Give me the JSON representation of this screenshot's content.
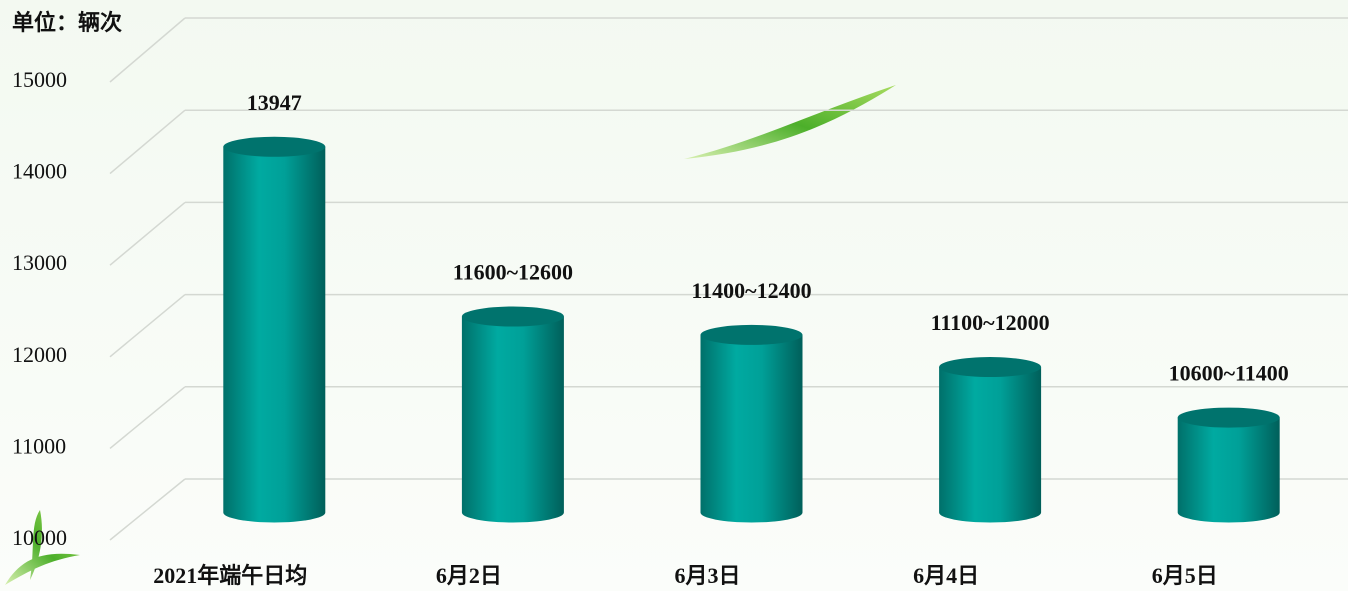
{
  "chart_data": {
    "type": "bar",
    "title": "单位：辆次",
    "categories": [
      "2021年端午日均",
      "6月2日",
      "6月3日",
      "6月4日",
      "6月5日"
    ],
    "values": [
      13947,
      12100,
      11900,
      11550,
      11000
    ],
    "value_labels": [
      "13947",
      "11600~12600",
      "11400~12400",
      "11100~12000",
      "10600~11400"
    ],
    "color": "#009e96",
    "ylim": [
      10000,
      15000
    ],
    "yticks": [
      10000,
      11000,
      12000,
      13000,
      14000,
      15000
    ],
    "grid": true
  }
}
